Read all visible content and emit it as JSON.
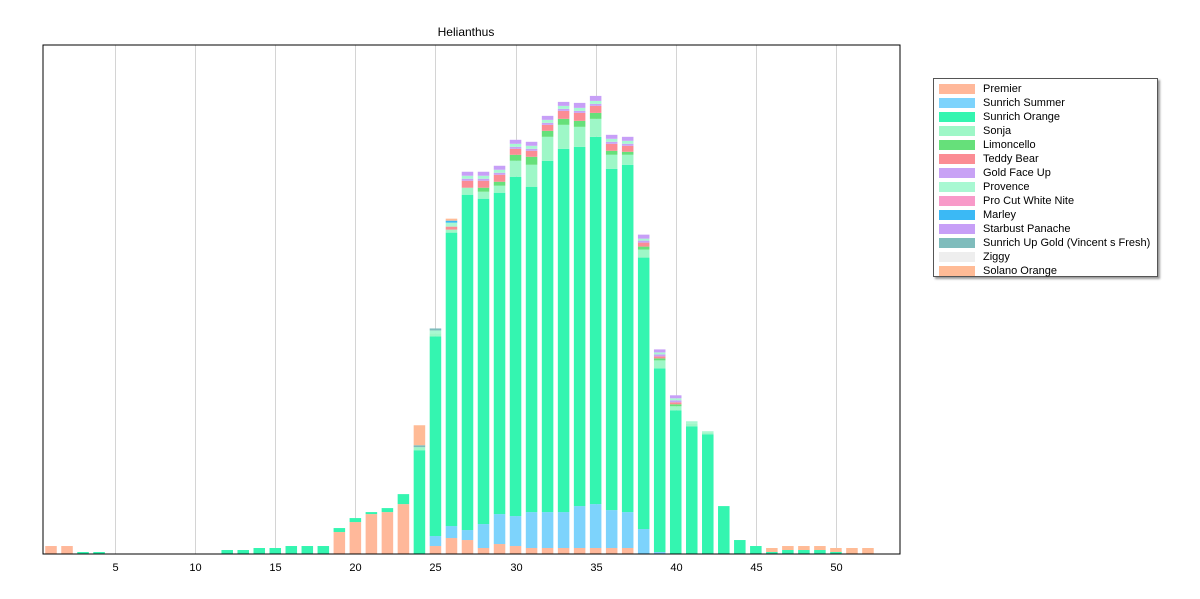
{
  "chart_data": {
    "type": "bar",
    "stacked": true,
    "title": "Helianthus",
    "xlabel": "",
    "ylabel": "",
    "x": [
      1,
      2,
      3,
      4,
      5,
      6,
      7,
      8,
      9,
      10,
      11,
      12,
      13,
      14,
      15,
      16,
      17,
      18,
      19,
      20,
      21,
      22,
      23,
      24,
      25,
      26,
      27,
      28,
      29,
      30,
      31,
      32,
      33,
      34,
      35,
      36,
      37,
      38,
      39,
      40,
      41,
      42,
      43,
      44,
      45,
      46,
      47,
      48,
      49,
      50,
      51,
      52
    ],
    "xlim": [
      0.5,
      54
    ],
    "ylim": [
      0,
      510
    ],
    "xticks": [
      5,
      10,
      15,
      20,
      25,
      30,
      35,
      40,
      45,
      50
    ],
    "vertical_grid": true,
    "horizontal_grid": false,
    "y_axis_labels_shown": false,
    "legend_position": "right",
    "series": [
      {
        "name": "Premier",
        "color": "#ffb89a",
        "values": [
          8,
          8,
          0,
          0,
          0,
          0,
          0,
          0,
          0,
          0,
          0,
          0,
          0,
          0,
          0,
          0,
          0,
          0,
          22,
          32,
          40,
          42,
          50,
          0,
          8,
          16,
          14,
          6,
          10,
          8,
          6,
          6,
          6,
          6,
          6,
          6,
          6,
          0,
          0,
          0,
          0,
          0,
          0,
          0,
          0,
          0,
          0,
          0,
          0,
          0,
          0,
          0
        ]
      },
      {
        "name": "Sunrich Summer",
        "color": "#7dd3fc",
        "values": [
          0,
          0,
          0,
          0,
          0,
          0,
          0,
          0,
          0,
          0,
          0,
          0,
          0,
          0,
          0,
          0,
          0,
          0,
          0,
          0,
          0,
          0,
          0,
          0,
          10,
          12,
          10,
          24,
          30,
          30,
          36,
          36,
          36,
          42,
          44,
          38,
          36,
          25,
          2,
          0,
          0,
          0,
          0,
          0,
          0,
          0,
          0,
          0,
          0,
          0,
          0,
          0
        ]
      },
      {
        "name": "Sunrich Orange",
        "color": "#34f5b0",
        "values": [
          0,
          0,
          2,
          2,
          0,
          0,
          0,
          0,
          0,
          0,
          0,
          4,
          4,
          6,
          6,
          8,
          8,
          8,
          4,
          4,
          2,
          4,
          10,
          104,
          200,
          294,
          336,
          326,
          322,
          340,
          326,
          352,
          364,
          360,
          368,
          342,
          348,
          272,
          184,
          144,
          128,
          120,
          48,
          14,
          8,
          2,
          4,
          4,
          4,
          2,
          0,
          0
        ]
      },
      {
        "name": "Sonja",
        "color": "#9ef7c7",
        "values": [
          0,
          0,
          0,
          0,
          0,
          0,
          0,
          0,
          0,
          0,
          0,
          0,
          0,
          0,
          0,
          0,
          0,
          0,
          0,
          0,
          0,
          0,
          0,
          3,
          3,
          3,
          7,
          7,
          7,
          16,
          22,
          24,
          24,
          20,
          18,
          14,
          10,
          8,
          8,
          4,
          3,
          2,
          0,
          0,
          0,
          0,
          0,
          0,
          0,
          0,
          0,
          0
        ]
      },
      {
        "name": "Limoncello",
        "color": "#66e07a",
        "values": [
          0,
          0,
          0,
          0,
          0,
          0,
          0,
          0,
          0,
          0,
          0,
          0,
          0,
          0,
          0,
          0,
          0,
          0,
          0,
          0,
          0,
          0,
          0,
          0,
          0,
          0,
          0,
          4,
          4,
          6,
          8,
          6,
          6,
          6,
          6,
          4,
          3,
          3,
          2,
          2,
          0,
          0,
          0,
          0,
          0,
          0,
          0,
          0,
          0,
          0,
          0,
          0
        ]
      },
      {
        "name": "Teddy Bear",
        "color": "#fb8c94",
        "values": [
          0,
          0,
          0,
          0,
          0,
          0,
          0,
          0,
          0,
          0,
          0,
          0,
          0,
          0,
          0,
          0,
          0,
          0,
          0,
          0,
          0,
          0,
          0,
          0,
          0,
          3,
          7,
          7,
          7,
          6,
          6,
          6,
          8,
          8,
          7,
          7,
          6,
          4,
          2,
          2,
          0,
          0,
          0,
          0,
          0,
          0,
          0,
          0,
          0,
          0,
          0,
          0
        ]
      },
      {
        "name": "Gold Face Up",
        "color": "#c8a2f5",
        "values": [
          0,
          0,
          0,
          0,
          0,
          0,
          0,
          0,
          0,
          0,
          0,
          0,
          0,
          0,
          0,
          0,
          0,
          0,
          0,
          0,
          0,
          0,
          0,
          0,
          0,
          0,
          2,
          2,
          2,
          2,
          2,
          2,
          2,
          2,
          2,
          2,
          2,
          2,
          2,
          2,
          0,
          0,
          0,
          0,
          0,
          0,
          0,
          0,
          0,
          0,
          0,
          0
        ]
      },
      {
        "name": "Provence",
        "color": "#a8f8d2",
        "values": [
          0,
          0,
          0,
          0,
          0,
          0,
          0,
          0,
          0,
          0,
          0,
          0,
          0,
          0,
          0,
          0,
          0,
          0,
          0,
          0,
          0,
          0,
          0,
          0,
          3,
          4,
          3,
          3,
          3,
          3,
          3,
          3,
          3,
          3,
          3,
          3,
          3,
          2,
          2,
          2,
          2,
          1,
          0,
          0,
          0,
          0,
          0,
          0,
          0,
          0,
          0,
          0
        ]
      },
      {
        "name": "Pro Cut White Nite",
        "color": "#f89ac9",
        "values": [
          0,
          0,
          0,
          0,
          0,
          0,
          0,
          0,
          0,
          0,
          0,
          0,
          0,
          0,
          0,
          0,
          0,
          0,
          0,
          0,
          0,
          0,
          0,
          0,
          0,
          0,
          0,
          0,
          0,
          0,
          0,
          0,
          0,
          0,
          0,
          0,
          0,
          0,
          0,
          0,
          0,
          0,
          0,
          0,
          0,
          0,
          0,
          0,
          0,
          0,
          0,
          0
        ]
      },
      {
        "name": "Marley",
        "color": "#3bb9f5",
        "values": [
          0,
          0,
          0,
          0,
          0,
          0,
          0,
          0,
          0,
          0,
          0,
          0,
          0,
          0,
          0,
          0,
          0,
          0,
          0,
          0,
          0,
          0,
          0,
          0,
          0,
          2,
          0,
          0,
          0,
          0,
          0,
          0,
          0,
          0,
          0,
          0,
          0,
          0,
          0,
          0,
          0,
          0,
          0,
          0,
          0,
          0,
          0,
          0,
          0,
          0,
          0,
          0
        ]
      },
      {
        "name": "Starbust Panache",
        "color": "#c79ff7",
        "values": [
          0,
          0,
          0,
          0,
          0,
          0,
          0,
          0,
          0,
          0,
          0,
          0,
          0,
          0,
          0,
          0,
          0,
          0,
          0,
          0,
          0,
          0,
          0,
          0,
          0,
          0,
          4,
          4,
          4,
          4,
          4,
          4,
          4,
          5,
          5,
          4,
          4,
          4,
          3,
          3,
          0,
          0,
          0,
          0,
          0,
          0,
          0,
          0,
          0,
          0,
          0,
          0
        ]
      },
      {
        "name": "Sunrich Up Gold (Vincent s Fresh)",
        "color": "#7fbcbc",
        "values": [
          0,
          0,
          0,
          0,
          0,
          0,
          0,
          0,
          0,
          0,
          0,
          0,
          0,
          0,
          0,
          0,
          0,
          0,
          0,
          0,
          0,
          0,
          0,
          2,
          2,
          0,
          0,
          0,
          0,
          0,
          0,
          0,
          0,
          0,
          0,
          0,
          0,
          0,
          0,
          0,
          0,
          0,
          0,
          0,
          0,
          0,
          0,
          0,
          0,
          0,
          0,
          0
        ]
      },
      {
        "name": "Ziggy",
        "color": "#eeeeee",
        "values": [
          0,
          0,
          0,
          0,
          0,
          0,
          0,
          0,
          0,
          0,
          0,
          0,
          0,
          0,
          0,
          0,
          0,
          0,
          0,
          0,
          0,
          0,
          0,
          0,
          0,
          0,
          0,
          0,
          0,
          0,
          0,
          0,
          0,
          0,
          0,
          0,
          0,
          0,
          0,
          0,
          0,
          0,
          0,
          0,
          0,
          0,
          0,
          0,
          0,
          0,
          0,
          0
        ]
      },
      {
        "name": "Solano Orange",
        "color": "#ffbb96",
        "values": [
          0,
          0,
          0,
          0,
          0,
          0,
          0,
          0,
          0,
          0,
          0,
          0,
          0,
          0,
          0,
          0,
          0,
          0,
          0,
          0,
          0,
          0,
          0,
          20,
          0,
          2,
          0,
          0,
          0,
          0,
          0,
          0,
          0,
          0,
          0,
          0,
          0,
          0,
          0,
          0,
          0,
          0,
          0,
          0,
          0,
          4,
          4,
          4,
          4,
          4,
          6,
          6
        ]
      }
    ]
  }
}
